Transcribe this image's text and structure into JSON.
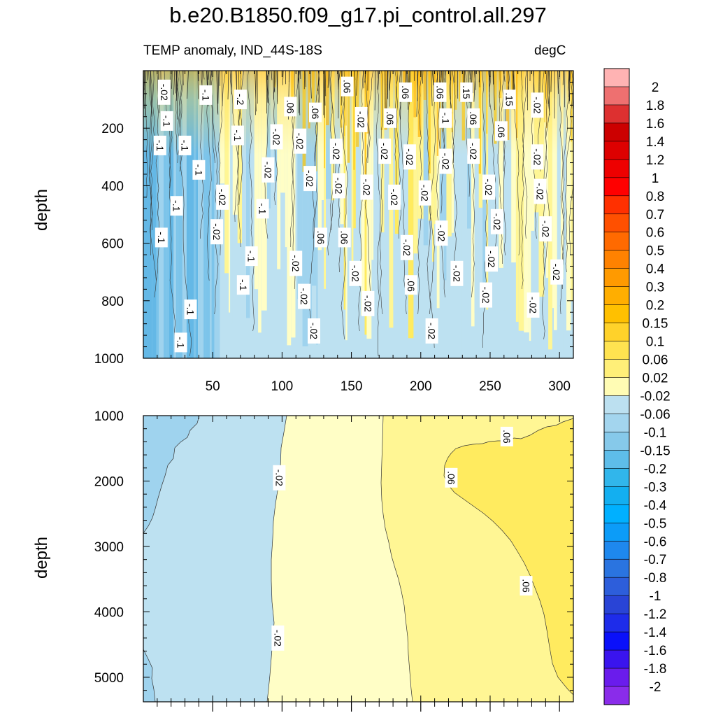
{
  "title": "b.e20.B1850.f09_g17.pi_control.all.297",
  "subtitle_left": "TEMP anomaly, IND_44S-18S",
  "subtitle_right": "degC",
  "colors": {
    "bg_blue": "#bde1f1",
    "pale_yellow": "#fffec6",
    "light_yellow": "#fff694",
    "yellow": "#ffeb5f",
    "mid_blue": "#9fd3ee",
    "blue": "#7cc4ea",
    "orange": "#ffb000"
  },
  "chart_data": [
    {
      "type": "heatmap",
      "panel": "upper",
      "ylabel": "depth",
      "y_reversed": true,
      "xlim": [
        0,
        310
      ],
      "ylim": [
        1000,
        0
      ],
      "x_ticks": [
        50,
        100,
        150,
        200,
        250,
        300
      ],
      "y_ticks": [
        200,
        400,
        600,
        800,
        1000
      ],
      "contour_labels": [
        {
          "text": "-.02",
          "x": 15,
          "y": 75
        },
        {
          "text": "-.1",
          "x": 45,
          "y": 85
        },
        {
          "text": "-.2",
          "x": 70,
          "y": 100
        },
        {
          "text": "-.1",
          "x": 17,
          "y": 175
        },
        {
          "text": "-.1",
          "x": 12,
          "y": 260
        },
        {
          "text": "-.1",
          "x": 30,
          "y": 260
        },
        {
          "text": "-.1",
          "x": 68,
          "y": 225
        },
        {
          "text": "-.1",
          "x": 40,
          "y": 345
        },
        {
          "text": "-.02",
          "x": 96,
          "y": 230
        },
        {
          "text": "-.02",
          "x": 90,
          "y": 345
        },
        {
          "text": "-.02",
          "x": 57,
          "y": 440
        },
        {
          "text": "-.1",
          "x": 24,
          "y": 470
        },
        {
          "text": "-.1",
          "x": 86,
          "y": 480
        },
        {
          "text": "-.1",
          "x": 13,
          "y": 580
        },
        {
          "text": "-.02",
          "x": 53,
          "y": 560
        },
        {
          "text": "-.1",
          "x": 78,
          "y": 645
        },
        {
          "text": "-.1",
          "x": 72,
          "y": 745
        },
        {
          "text": "-.1",
          "x": 34,
          "y": 830
        },
        {
          "text": "-.1",
          "x": 27,
          "y": 945
        },
        {
          "text": ".06",
          "x": 147,
          "y": 55
        },
        {
          "text": ".06",
          "x": 106,
          "y": 125
        },
        {
          "text": ".06",
          "x": 124,
          "y": 145
        },
        {
          "text": ".06",
          "x": 189,
          "y": 75
        },
        {
          "text": ".06",
          "x": 214,
          "y": 75
        },
        {
          "text": ".06",
          "x": 178,
          "y": 165
        },
        {
          "text": ".06",
          "x": 238,
          "y": 165
        },
        {
          "text": ".06",
          "x": 258,
          "y": 210
        },
        {
          "text": ".15",
          "x": 233,
          "y": 75
        },
        {
          "text": ".15",
          "x": 264,
          "y": 100
        },
        {
          "text": "-.02",
          "x": 284,
          "y": 120
        },
        {
          "text": "-.02",
          "x": 157,
          "y": 170
        },
        {
          "text": "-.1",
          "x": 218,
          "y": 165
        },
        {
          "text": "-.02",
          "x": 113,
          "y": 245
        },
        {
          "text": "-.02",
          "x": 139,
          "y": 280
        },
        {
          "text": "-.02",
          "x": 174,
          "y": 280
        },
        {
          "text": "-.02",
          "x": 192,
          "y": 300
        },
        {
          "text": "-.02",
          "x": 218,
          "y": 315
        },
        {
          "text": "-.02",
          "x": 238,
          "y": 280
        },
        {
          "text": "-.02",
          "x": 284,
          "y": 300
        },
        {
          "text": "-.02",
          "x": 120,
          "y": 375
        },
        {
          "text": "-.02",
          "x": 141,
          "y": 400
        },
        {
          "text": "-.02",
          "x": 161,
          "y": 405
        },
        {
          "text": "-.02",
          "x": 181,
          "y": 440
        },
        {
          "text": "-.02",
          "x": 203,
          "y": 425
        },
        {
          "text": "-.02",
          "x": 249,
          "y": 405
        },
        {
          "text": "-.02",
          "x": 286,
          "y": 420
        },
        {
          "text": "-.02",
          "x": 255,
          "y": 525
        },
        {
          "text": "-.02",
          "x": 290,
          "y": 550
        },
        {
          "text": "-.02",
          "x": 215,
          "y": 565
        },
        {
          "text": ".06",
          "x": 128,
          "y": 580
        },
        {
          "text": ".06",
          "x": 145,
          "y": 580
        },
        {
          "text": "-.02",
          "x": 190,
          "y": 615
        },
        {
          "text": "-.02",
          "x": 251,
          "y": 655
        },
        {
          "text": "-.02",
          "x": 110,
          "y": 670
        },
        {
          "text": "-.02",
          "x": 153,
          "y": 705
        },
        {
          "text": "-.02",
          "x": 226,
          "y": 705
        },
        {
          "text": "-.02",
          "x": 298,
          "y": 700
        },
        {
          "text": ".06",
          "x": 193,
          "y": 745
        },
        {
          "text": "-.02",
          "x": 116,
          "y": 785
        },
        {
          "text": "-.02",
          "x": 247,
          "y": 780
        },
        {
          "text": "-.02",
          "x": 162,
          "y": 810
        },
        {
          "text": "-.02",
          "x": 281,
          "y": 815
        },
        {
          "text": "-.02",
          "x": 123,
          "y": 905
        },
        {
          "text": "-.02",
          "x": 208,
          "y": 905
        }
      ]
    },
    {
      "type": "heatmap",
      "panel": "lower",
      "ylabel": "depth",
      "y_reversed": true,
      "xlim": [
        0,
        310
      ],
      "ylim": [
        5375,
        1000
      ],
      "x_ticks": [
        50,
        100,
        150,
        200,
        250,
        300
      ],
      "y_ticks": [
        1000,
        2000,
        3000,
        4000,
        5000
      ],
      "contour_labels": [
        {
          "text": "-.02",
          "x": 98,
          "y": 1950
        },
        {
          "text": "-.02",
          "x": 97,
          "y": 4400
        },
        {
          "text": ".06",
          "x": 222,
          "y": 1950
        },
        {
          "text": ".06",
          "x": 262,
          "y": 1320
        },
        {
          "text": ".06",
          "x": 276,
          "y": 3600
        }
      ]
    }
  ],
  "colorbar": {
    "labels": [
      "2",
      "1.8",
      "1.6",
      "1.4",
      "1.2",
      "1",
      "0.8",
      "0.7",
      "0.6",
      "0.5",
      "0.4",
      "0.3",
      "0.2",
      "0.15",
      "0.1",
      "0.06",
      "0.02",
      "-0.02",
      "-0.06",
      "-0.1",
      "-0.15",
      "-0.2",
      "-0.3",
      "-0.4",
      "-0.5",
      "-0.6",
      "-0.7",
      "-0.8",
      "-1",
      "-1.2",
      "-1.4",
      "-1.6",
      "-1.8",
      "-2"
    ],
    "colors": [
      "#ffb3b3",
      "#ee7070",
      "#dd3030",
      "#cc0000",
      "#dd0000",
      "#ee0000",
      "#ff0000",
      "#ff3000",
      "#ff5000",
      "#ff6a00",
      "#ff8200",
      "#ff9a00",
      "#ffae00",
      "#ffc000",
      "#ffd22a",
      "#ffe350",
      "#ffef78",
      "#fffcb4",
      "#bce0f0",
      "#a3d5ee",
      "#86c9ea",
      "#5ebde9",
      "#31b6eb",
      "#13aff0",
      "#00b0ff",
      "#0c9cf8",
      "#1e88ee",
      "#2a74e0",
      "#2d5edb",
      "#2944d6",
      "#1e2cea",
      "#0a10fa",
      "#3a14ee",
      "#6a1cec",
      "#8a2cea"
    ]
  }
}
